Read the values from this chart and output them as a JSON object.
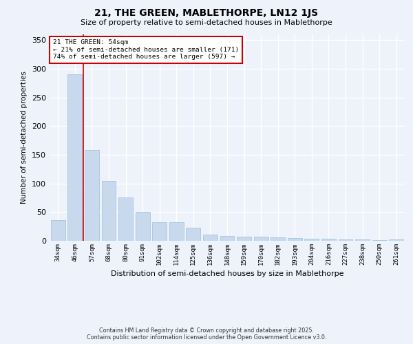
{
  "title": "21, THE GREEN, MABLETHORPE, LN12 1JS",
  "subtitle": "Size of property relative to semi-detached houses in Mablethorpe",
  "xlabel": "Distribution of semi-detached houses by size in Mablethorpe",
  "ylabel": "Number of semi-detached properties",
  "categories": [
    "34sqm",
    "46sqm",
    "57sqm",
    "68sqm",
    "80sqm",
    "91sqm",
    "102sqm",
    "114sqm",
    "125sqm",
    "136sqm",
    "148sqm",
    "159sqm",
    "170sqm",
    "182sqm",
    "193sqm",
    "204sqm",
    "216sqm",
    "227sqm",
    "238sqm",
    "250sqm",
    "261sqm"
  ],
  "values": [
    36,
    290,
    158,
    104,
    76,
    50,
    33,
    33,
    23,
    11,
    8,
    7,
    7,
    6,
    5,
    4,
    4,
    3,
    2,
    1,
    3
  ],
  "bar_color": "#c9d9ed",
  "bar_edge_color": "#a8c4e0",
  "vline_x": 1.5,
  "vline_color": "#cc0000",
  "annotation_title": "21 THE GREEN: 54sqm",
  "annotation_line1": "← 21% of semi-detached houses are smaller (171)",
  "annotation_line2": "74% of semi-detached houses are larger (597) →",
  "annotation_box_color": "#cc0000",
  "ylim": [
    0,
    360
  ],
  "yticks": [
    0,
    50,
    100,
    150,
    200,
    250,
    300,
    350
  ],
  "background_color": "#eef2fa",
  "grid_color": "#ffffff",
  "footer_line1": "Contains HM Land Registry data © Crown copyright and database right 2025.",
  "footer_line2": "Contains public sector information licensed under the Open Government Licence v3.0."
}
